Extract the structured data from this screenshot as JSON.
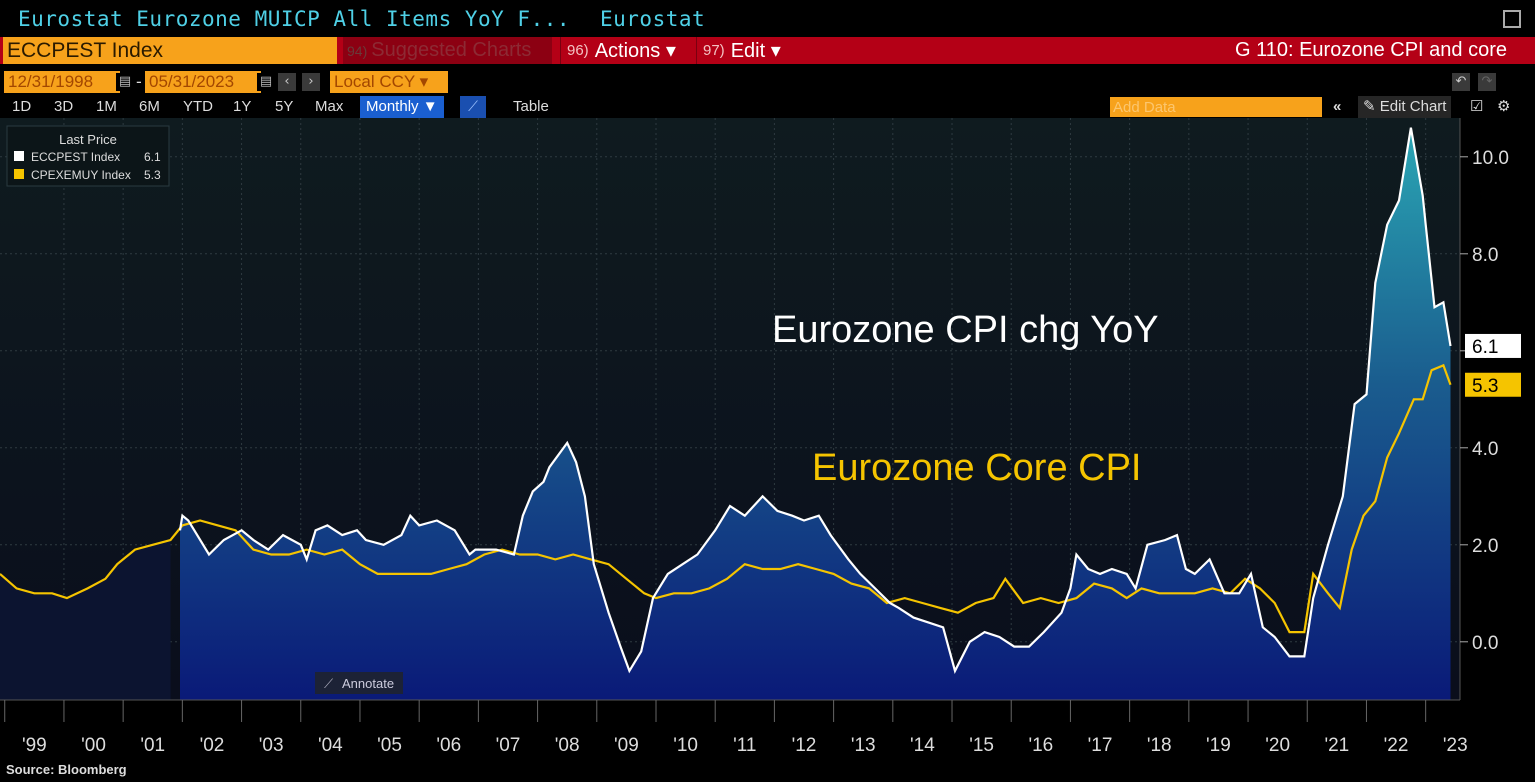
{
  "header": {
    "title": "Eurostat Eurozone MUICP All Items YoY F...",
    "source_name": "Eurostat",
    "ticker": "ECCPEST Index",
    "suggested": {
      "num": "94)",
      "label": "Suggested Charts"
    },
    "actions": {
      "num": "96)",
      "label": "Actions ▾"
    },
    "edit": {
      "num": "97)",
      "label": "Edit ▾"
    },
    "chart_name": "G 110: Eurozone CPI and core"
  },
  "range": {
    "start": "12/31/1998",
    "end": "05/31/2023",
    "currency": "Local CCY ▾"
  },
  "periods": [
    "1D",
    "3D",
    "1M",
    "6M",
    "YTD",
    "1Y",
    "5Y",
    "Max"
  ],
  "frequency": "Monthly ▼",
  "table_label": "Table",
  "add_data_placeholder": "Add Data",
  "edit_chart_label": "Edit Chart",
  "legend": {
    "header": "Last Price",
    "items": [
      {
        "name": "ECCPEST Index",
        "value": "6.1",
        "color": "#ffffff"
      },
      {
        "name": "CPEXEMUY Index",
        "value": "5.3",
        "color": "#f5c400"
      }
    ]
  },
  "annotate_label": "Annotate",
  "footer": "Source: Bloomberg",
  "chart_data": {
    "type": "line",
    "annotations": [
      "Eurozone CPI chg YoY",
      "Eurozone Core CPI"
    ],
    "ylim": [
      -1.2,
      10.8
    ],
    "yticks": [
      "10.0",
      "8.0",
      "6.0",
      "4.0",
      "2.0",
      "0.0"
    ],
    "ytick_values": [
      10,
      8,
      6,
      4,
      2,
      0
    ],
    "xlim": [
      1998.92,
      2023.58
    ],
    "xticks": [
      "'99",
      "'00",
      "'01",
      "'02",
      "'03",
      "'04",
      "'05",
      "'06",
      "'07",
      "'08",
      "'09",
      "'10",
      "'11",
      "'12",
      "'13",
      "'14",
      "'15",
      "'16",
      "'17",
      "'18",
      "'19",
      "'20",
      "'21",
      "'22",
      "'23"
    ],
    "xtick_years": [
      1999,
      2000,
      2001,
      2002,
      2003,
      2004,
      2005,
      2006,
      2007,
      2008,
      2009,
      2010,
      2011,
      2012,
      2013,
      2014,
      2015,
      2016,
      2017,
      2018,
      2019,
      2020,
      2021,
      2022,
      2023
    ],
    "series": [
      {
        "name": "ECCPEST Index",
        "color": "#ffffff",
        "last": "6.1",
        "points": [
          [
            2001.96,
            2.3
          ],
          [
            2002.0,
            2.6
          ],
          [
            2002.1,
            2.5
          ],
          [
            2002.25,
            2.2
          ],
          [
            2002.45,
            1.8
          ],
          [
            2002.7,
            2.1
          ],
          [
            2003.0,
            2.3
          ],
          [
            2003.2,
            2.1
          ],
          [
            2003.45,
            1.9
          ],
          [
            2003.7,
            2.2
          ],
          [
            2004.0,
            2.0
          ],
          [
            2004.1,
            1.7
          ],
          [
            2004.25,
            2.3
          ],
          [
            2004.45,
            2.4
          ],
          [
            2004.7,
            2.2
          ],
          [
            2004.95,
            2.3
          ],
          [
            2005.1,
            2.1
          ],
          [
            2005.4,
            2.0
          ],
          [
            2005.7,
            2.2
          ],
          [
            2005.85,
            2.6
          ],
          [
            2006.0,
            2.4
          ],
          [
            2006.3,
            2.5
          ],
          [
            2006.6,
            2.3
          ],
          [
            2006.85,
            1.8
          ],
          [
            2006.95,
            1.9
          ],
          [
            2007.3,
            1.9
          ],
          [
            2007.6,
            1.8
          ],
          [
            2007.75,
            2.6
          ],
          [
            2007.92,
            3.1
          ],
          [
            2008.1,
            3.3
          ],
          [
            2008.2,
            3.6
          ],
          [
            2008.5,
            4.1
          ],
          [
            2008.65,
            3.7
          ],
          [
            2008.8,
            3.0
          ],
          [
            2008.95,
            1.6
          ],
          [
            2009.2,
            0.6
          ],
          [
            2009.4,
            -0.1
          ],
          [
            2009.55,
            -0.6
          ],
          [
            2009.75,
            -0.2
          ],
          [
            2009.95,
            0.9
          ],
          [
            2010.2,
            1.4
          ],
          [
            2010.45,
            1.6
          ],
          [
            2010.7,
            1.8
          ],
          [
            2011.0,
            2.3
          ],
          [
            2011.25,
            2.8
          ],
          [
            2011.5,
            2.6
          ],
          [
            2011.8,
            3.0
          ],
          [
            2012.05,
            2.7
          ],
          [
            2012.3,
            2.6
          ],
          [
            2012.5,
            2.5
          ],
          [
            2012.75,
            2.6
          ],
          [
            2012.95,
            2.2
          ],
          [
            2013.25,
            1.7
          ],
          [
            2013.45,
            1.4
          ],
          [
            2013.7,
            1.1
          ],
          [
            2013.95,
            0.8
          ],
          [
            2014.1,
            0.7
          ],
          [
            2014.35,
            0.5
          ],
          [
            2014.6,
            0.4
          ],
          [
            2014.85,
            0.3
          ],
          [
            2015.05,
            -0.6
          ],
          [
            2015.3,
            0.0
          ],
          [
            2015.55,
            0.2
          ],
          [
            2015.8,
            0.1
          ],
          [
            2016.05,
            -0.1
          ],
          [
            2016.3,
            -0.1
          ],
          [
            2016.55,
            0.2
          ],
          [
            2016.85,
            0.6
          ],
          [
            2017.0,
            1.1
          ],
          [
            2017.1,
            1.8
          ],
          [
            2017.3,
            1.5
          ],
          [
            2017.5,
            1.4
          ],
          [
            2017.7,
            1.5
          ],
          [
            2017.95,
            1.4
          ],
          [
            2018.1,
            1.1
          ],
          [
            2018.3,
            2.0
          ],
          [
            2018.6,
            2.1
          ],
          [
            2018.8,
            2.2
          ],
          [
            2018.95,
            1.5
          ],
          [
            2019.1,
            1.4
          ],
          [
            2019.35,
            1.7
          ],
          [
            2019.6,
            1.0
          ],
          [
            2019.85,
            1.0
          ],
          [
            2020.05,
            1.4
          ],
          [
            2020.25,
            0.3
          ],
          [
            2020.45,
            0.1
          ],
          [
            2020.7,
            -0.3
          ],
          [
            2020.95,
            -0.3
          ],
          [
            2021.1,
            0.9
          ],
          [
            2021.35,
            2.0
          ],
          [
            2021.6,
            3.0
          ],
          [
            2021.8,
            4.9
          ],
          [
            2022.0,
            5.1
          ],
          [
            2022.15,
            7.4
          ],
          [
            2022.35,
            8.6
          ],
          [
            2022.55,
            9.1
          ],
          [
            2022.75,
            10.6
          ],
          [
            2022.95,
            9.2
          ],
          [
            2023.0,
            8.6
          ],
          [
            2023.15,
            6.9
          ],
          [
            2023.3,
            7.0
          ],
          [
            2023.42,
            6.1
          ]
        ]
      },
      {
        "name": "CPEXEMUY Index",
        "color": "#f5c400",
        "last": "5.3",
        "points": [
          [
            1998.92,
            1.4
          ],
          [
            1999.2,
            1.1
          ],
          [
            1999.5,
            1.0
          ],
          [
            1999.8,
            1.0
          ],
          [
            2000.05,
            0.9
          ],
          [
            2000.4,
            1.1
          ],
          [
            2000.7,
            1.3
          ],
          [
            2000.9,
            1.6
          ],
          [
            2001.2,
            1.9
          ],
          [
            2001.5,
            2.0
          ],
          [
            2001.8,
            2.1
          ],
          [
            2002.0,
            2.4
          ],
          [
            2002.3,
            2.5
          ],
          [
            2002.6,
            2.4
          ],
          [
            2002.9,
            2.3
          ],
          [
            2003.2,
            1.9
          ],
          [
            2003.5,
            1.8
          ],
          [
            2003.8,
            1.8
          ],
          [
            2004.1,
            1.9
          ],
          [
            2004.4,
            1.8
          ],
          [
            2004.7,
            1.9
          ],
          [
            2005.0,
            1.6
          ],
          [
            2005.3,
            1.4
          ],
          [
            2005.6,
            1.4
          ],
          [
            2005.9,
            1.4
          ],
          [
            2006.2,
            1.4
          ],
          [
            2006.5,
            1.5
          ],
          [
            2006.8,
            1.6
          ],
          [
            2007.1,
            1.8
          ],
          [
            2007.4,
            1.9
          ],
          [
            2007.7,
            1.8
          ],
          [
            2008.0,
            1.8
          ],
          [
            2008.3,
            1.7
          ],
          [
            2008.6,
            1.8
          ],
          [
            2008.9,
            1.7
          ],
          [
            2009.2,
            1.6
          ],
          [
            2009.5,
            1.3
          ],
          [
            2009.8,
            1.0
          ],
          [
            2010.0,
            0.9
          ],
          [
            2010.3,
            1.0
          ],
          [
            2010.6,
            1.0
          ],
          [
            2010.9,
            1.1
          ],
          [
            2011.2,
            1.3
          ],
          [
            2011.5,
            1.6
          ],
          [
            2011.8,
            1.5
          ],
          [
            2012.1,
            1.5
          ],
          [
            2012.4,
            1.6
          ],
          [
            2012.7,
            1.5
          ],
          [
            2013.0,
            1.4
          ],
          [
            2013.3,
            1.2
          ],
          [
            2013.6,
            1.1
          ],
          [
            2013.9,
            0.8
          ],
          [
            2014.2,
            0.9
          ],
          [
            2014.5,
            0.8
          ],
          [
            2014.8,
            0.7
          ],
          [
            2015.1,
            0.6
          ],
          [
            2015.4,
            0.8
          ],
          [
            2015.7,
            0.9
          ],
          [
            2015.9,
            1.3
          ],
          [
            2016.2,
            0.8
          ],
          [
            2016.5,
            0.9
          ],
          [
            2016.8,
            0.8
          ],
          [
            2017.1,
            0.9
          ],
          [
            2017.4,
            1.2
          ],
          [
            2017.7,
            1.1
          ],
          [
            2017.95,
            0.9
          ],
          [
            2018.2,
            1.1
          ],
          [
            2018.5,
            1.0
          ],
          [
            2018.8,
            1.0
          ],
          [
            2019.1,
            1.0
          ],
          [
            2019.4,
            1.1
          ],
          [
            2019.7,
            1.0
          ],
          [
            2019.95,
            1.3
          ],
          [
            2020.2,
            1.1
          ],
          [
            2020.45,
            0.8
          ],
          [
            2020.7,
            0.2
          ],
          [
            2020.95,
            0.2
          ],
          [
            2021.1,
            1.4
          ],
          [
            2021.35,
            1.0
          ],
          [
            2021.55,
            0.7
          ],
          [
            2021.75,
            1.9
          ],
          [
            2021.95,
            2.6
          ],
          [
            2022.15,
            2.9
          ],
          [
            2022.35,
            3.8
          ],
          [
            2022.55,
            4.3
          ],
          [
            2022.8,
            5.0
          ],
          [
            2022.95,
            5.0
          ],
          [
            2023.1,
            5.6
          ],
          [
            2023.3,
            5.7
          ],
          [
            2023.42,
            5.3
          ]
        ]
      }
    ]
  }
}
